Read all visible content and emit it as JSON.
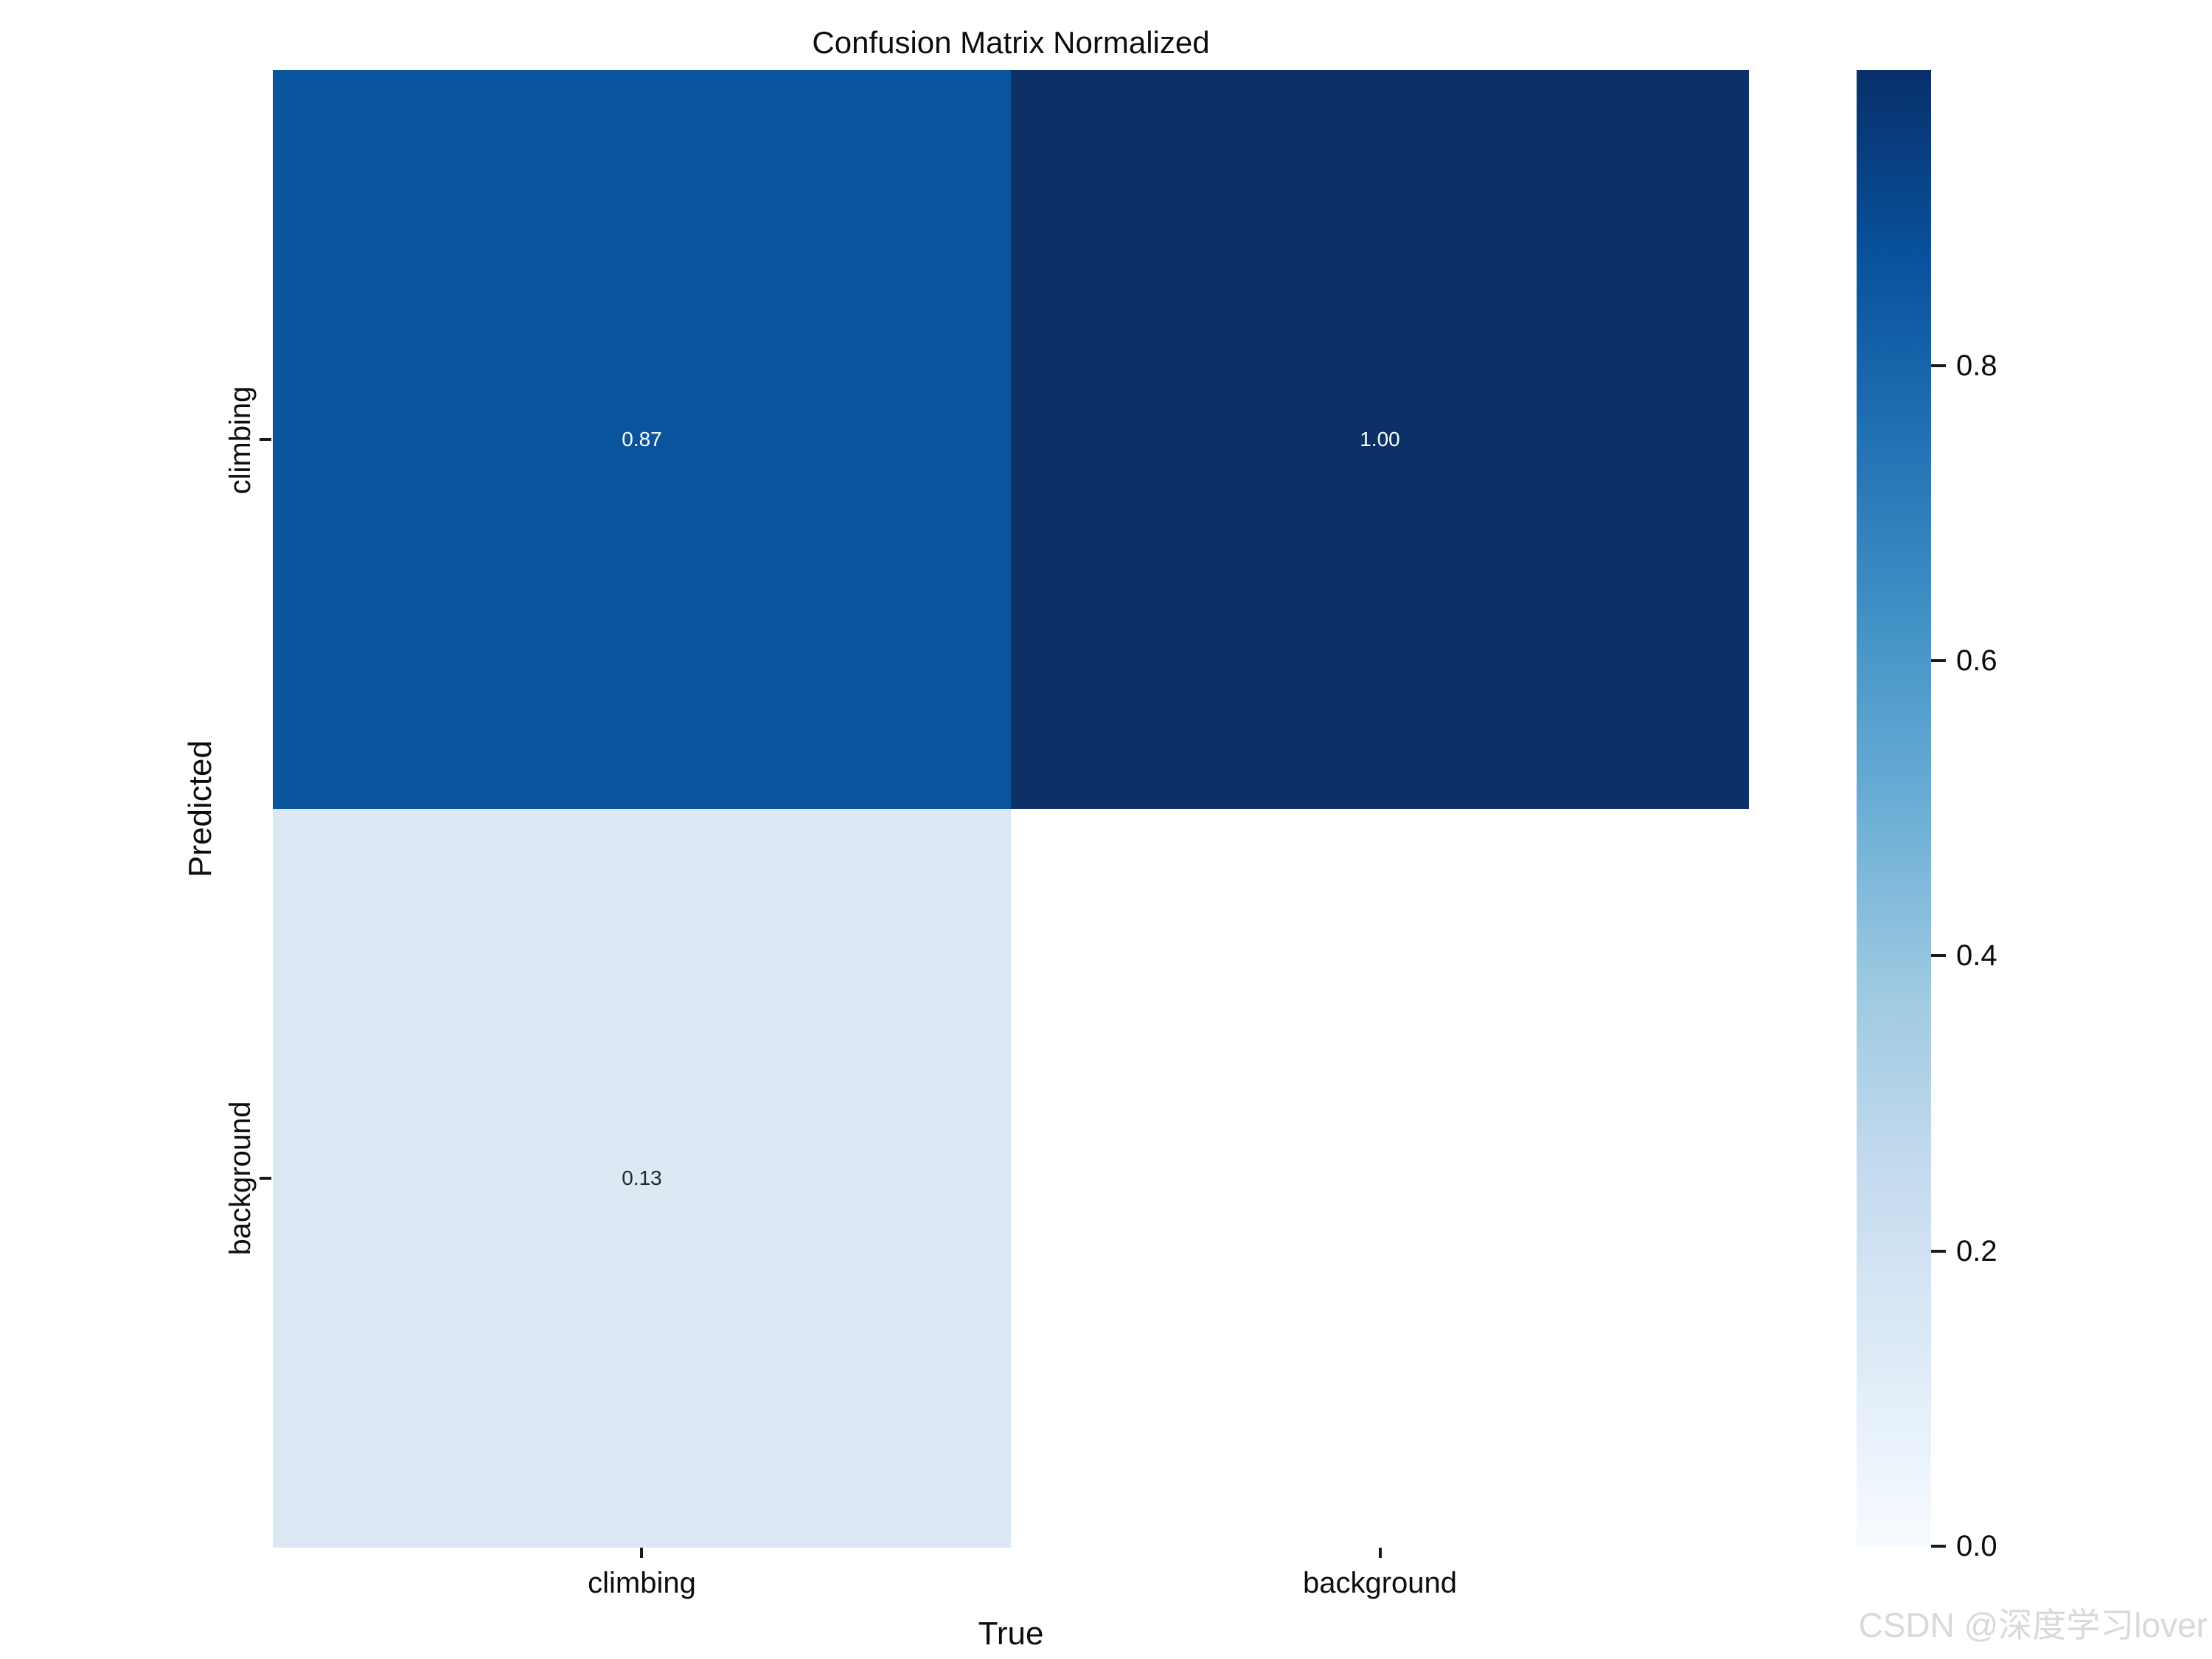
{
  "title": "Confusion Matrix Normalized",
  "watermark": "CSDN @深度学习lover",
  "chart_data": {
    "type": "heatmap",
    "title": "Confusion Matrix Normalized",
    "xlabel": "True",
    "ylabel": "Predicted",
    "x_categories": [
      "climbing",
      "background"
    ],
    "y_categories": [
      "climbing",
      "background"
    ],
    "colormap": "Blues",
    "value_range": [
      0.0,
      1.0
    ],
    "grid": false,
    "cells": [
      {
        "row": "climbing",
        "col": "climbing",
        "value": "0.87",
        "color": "#0a549e",
        "text_color": "#ffffff"
      },
      {
        "row": "climbing",
        "col": "background",
        "value": "1.00",
        "color": "#0b3166",
        "text_color": "#ffffff"
      },
      {
        "row": "background",
        "col": "climbing",
        "value": "0.13",
        "color": "#dce9f5",
        "text_color": "#262626"
      },
      {
        "row": "background",
        "col": "background",
        "value": "",
        "color": "#ffffff",
        "text_color": "#262626"
      }
    ],
    "colorbar": {
      "position": "right",
      "tick_labels": [
        "0.8",
        "0.6",
        "0.4",
        "0.2",
        "0.0"
      ],
      "gradient_stops_bottom_to_top": [
        "#f7fbff 0%",
        "#deebf7 12.5%",
        "#c6dbef 25%",
        "#9ecae1 37.5%",
        "#6baed6 50%",
        "#4292c6 62.5%",
        "#2171b5 75%",
        "#08519c 87.5%",
        "#08306b 100%"
      ]
    }
  }
}
